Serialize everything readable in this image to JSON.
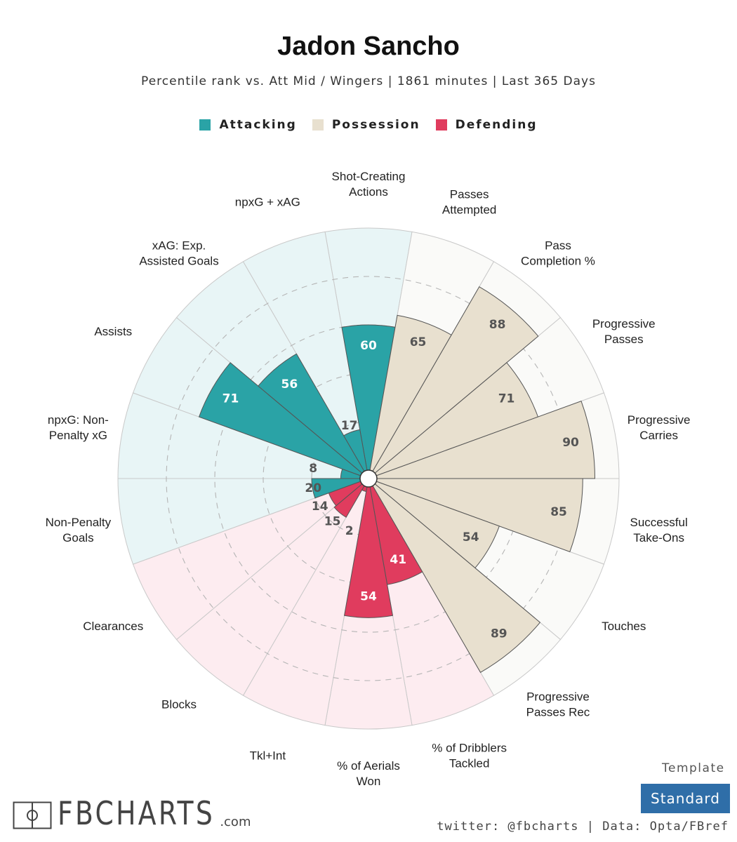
{
  "header": {
    "title": "Jadon Sancho",
    "subtitle": "Percentile rank vs. Att Mid / Wingers | 1861 minutes | Last 365 Days"
  },
  "legend": [
    {
      "label": "Attacking",
      "color": "#2aa3a6"
    },
    {
      "label": "Possession",
      "color": "#e8e0cf"
    },
    {
      "label": "Defending",
      "color": "#e03c5e"
    }
  ],
  "colors": {
    "Attacking": {
      "bar": "#2aa3a6",
      "bg": "#e8f5f6",
      "text": "#ffffff"
    },
    "Possession": {
      "bar": "#e8e0cf",
      "bg": "#fafaf8",
      "text": "#555555"
    },
    "Defending": {
      "bar": "#e03c5e",
      "bg": "#fdecf0",
      "text": "#ffffff"
    }
  },
  "chart_data": {
    "type": "polar-bar",
    "title": "Jadon Sancho",
    "subtitle": "Percentile rank vs. Att Mid / Wingers | 1861 minutes | Last 365 Days",
    "rlim": [
      0,
      100
    ],
    "categories": [
      {
        "label": [
          "Shot-Creating",
          "Actions"
        ],
        "group": "Attacking",
        "value": 60
      },
      {
        "label": [
          "Passes",
          "Attempted"
        ],
        "group": "Possession",
        "value": 65
      },
      {
        "label": [
          "Pass",
          "Completion %"
        ],
        "group": "Possession",
        "value": 88
      },
      {
        "label": [
          "Progressive",
          "Passes"
        ],
        "group": "Possession",
        "value": 71
      },
      {
        "label": [
          "Progressive",
          "Carries"
        ],
        "group": "Possession",
        "value": 90
      },
      {
        "label": [
          "Successful",
          "Take-Ons"
        ],
        "group": "Possession",
        "value": 85
      },
      {
        "label": [
          "Touches"
        ],
        "group": "Possession",
        "value": 54
      },
      {
        "label": [
          "Progressive",
          "Passes Rec"
        ],
        "group": "Possession",
        "value": 89
      },
      {
        "label": [
          "% of Dribblers",
          "Tackled"
        ],
        "group": "Defending",
        "value": 41
      },
      {
        "label": [
          "% of Aerials",
          "Won"
        ],
        "group": "Defending",
        "value": 54
      },
      {
        "label": [
          "Tkl+Int"
        ],
        "group": "Defending",
        "value": 2
      },
      {
        "label": [
          "Blocks"
        ],
        "group": "Defending",
        "value": 15
      },
      {
        "label": [
          "Clearances"
        ],
        "group": "Defending",
        "value": 14
      },
      {
        "label": [
          "Non-Penalty",
          "Goals"
        ],
        "group": "Attacking",
        "value": 20
      },
      {
        "label": [
          "npxG: Non-",
          "Penalty xG"
        ],
        "group": "Attacking",
        "value": 8
      },
      {
        "label": [
          "Assists"
        ],
        "group": "Attacking",
        "value": 71
      },
      {
        "label": [
          "xAG: Exp.",
          "Assisted Goals"
        ],
        "group": "Attacking",
        "value": 56
      },
      {
        "label": [
          "npxG + xAG"
        ],
        "group": "Attacking",
        "value": 17
      }
    ]
  },
  "footer": {
    "logo_text": "FBCHARTS",
    "logo_suffix": ".com",
    "template_label": "Template",
    "template_value": "Standard",
    "credits": "twitter: @fbcharts | Data: Opta/FBref"
  }
}
